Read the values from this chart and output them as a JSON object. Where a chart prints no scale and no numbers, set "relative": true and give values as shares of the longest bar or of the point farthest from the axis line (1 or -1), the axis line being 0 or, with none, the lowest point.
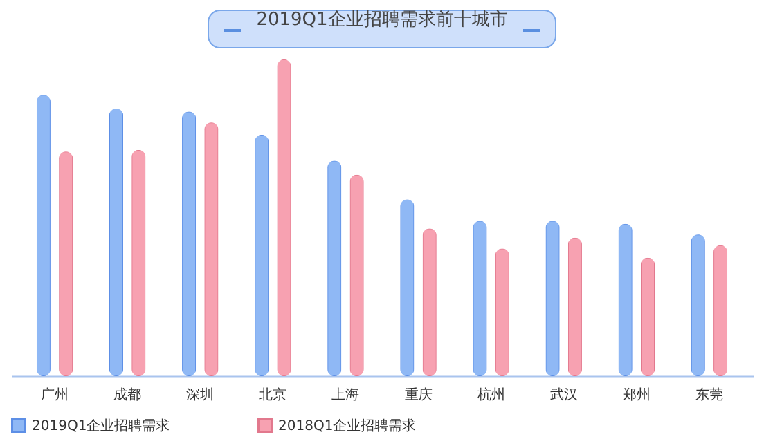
{
  "chart_data": {
    "type": "bar",
    "title": "2019Q1企业招聘需求前十城市",
    "relative": true,
    "categories": [
      "广州",
      "成都",
      "深圳",
      "北京",
      "上海",
      "重庆",
      "杭州",
      "武汉",
      "郑州",
      "东莞"
    ],
    "series": [
      {
        "name": "2019Q1企业招聘需求",
        "color": "#8fb8f5",
        "values": [
          0.888,
          0.845,
          0.835,
          0.762,
          0.68,
          0.558,
          0.49,
          0.49,
          0.481,
          0.447
        ]
      },
      {
        "name": "2018Q1企业招聘需求",
        "color": "#f7a1b1",
        "values": [
          0.709,
          0.714,
          0.801,
          1,
          0.636,
          0.466,
          0.403,
          0.437,
          0.374,
          0.413
        ]
      }
    ],
    "legend": "bottom",
    "grid": false
  }
}
